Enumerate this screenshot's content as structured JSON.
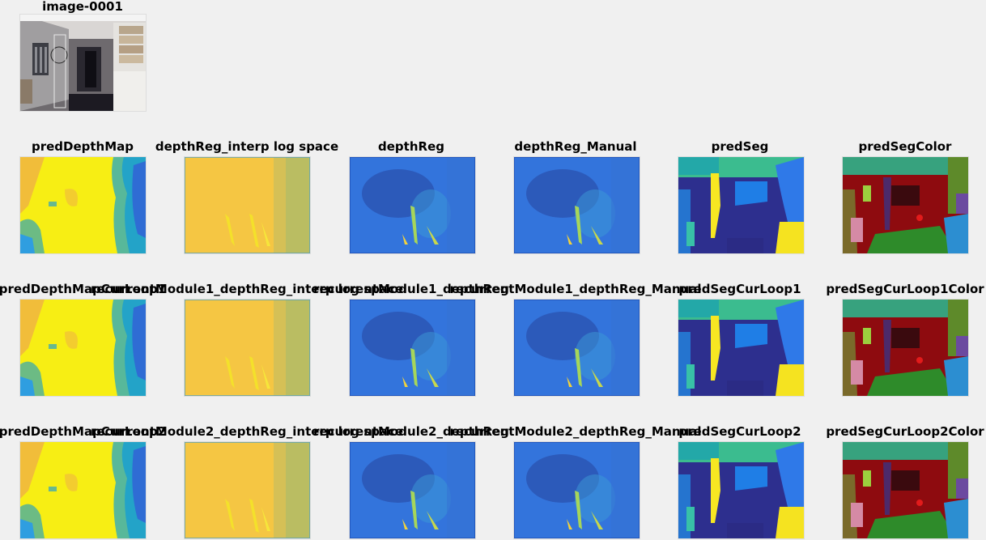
{
  "figure": {
    "top_image_title": "image-0001",
    "rows": [
      {
        "panels": [
          {
            "id": "predDepthMap",
            "title": "predDepthMap",
            "type": "depth-parula"
          },
          {
            "id": "depthReg_interp",
            "title": "depthReg_interp log space",
            "type": "depth-yellow"
          },
          {
            "id": "depthReg",
            "title": "depthReg",
            "type": "depth-blue"
          },
          {
            "id": "depthReg_Manual",
            "title": "depthReg_Manual",
            "type": "depth-blue"
          },
          {
            "id": "predSeg",
            "title": "predSeg",
            "type": "seg-parula"
          },
          {
            "id": "predSegColor",
            "title": "predSegColor",
            "type": "seg-color"
          }
        ]
      },
      {
        "panels": [
          {
            "id": "predDepthMapCurLoop1",
            "title": "predDepthMapCurLoop1",
            "type": "depth-parula"
          },
          {
            "id": "recurrentModule1_depthReg_interp",
            "title": "recurrentModule1_depthReg_interp log space",
            "type": "depth-yellow"
          },
          {
            "id": "recurrentModule1_depthReg",
            "title": "recurrentModule1_depthReg",
            "type": "depth-blue"
          },
          {
            "id": "recurrentModule1_depthReg_Manual",
            "title": "recurrentModule1_depthReg_Manual",
            "type": "depth-blue"
          },
          {
            "id": "predSegCurLoop1",
            "title": "predSegCurLoop1",
            "type": "seg-parula"
          },
          {
            "id": "predSegCurLoop1Color",
            "title": "predSegCurLoop1Color",
            "type": "seg-color"
          }
        ]
      },
      {
        "panels": [
          {
            "id": "predDepthMapCurLoop2",
            "title": "predDepthMapCurLoop2",
            "type": "depth-parula"
          },
          {
            "id": "recurrentModule2_depthReg_interp",
            "title": "recurrentModule2_depthReg_interp log space",
            "type": "depth-yellow"
          },
          {
            "id": "recurrentModule2_depthReg",
            "title": "recurrentModule2_depthReg",
            "type": "depth-blue"
          },
          {
            "id": "recurrentModule2_depthReg_Manual",
            "title": "recurrentModule2_depthReg_Manual",
            "type": "depth-blue"
          },
          {
            "id": "predSegCurLoop2",
            "title": "predSegCurLoop2",
            "type": "seg-parula"
          },
          {
            "id": "predSegCurLoop2Color",
            "title": "predSegCurLoop2Color",
            "type": "seg-color"
          }
        ]
      }
    ]
  }
}
